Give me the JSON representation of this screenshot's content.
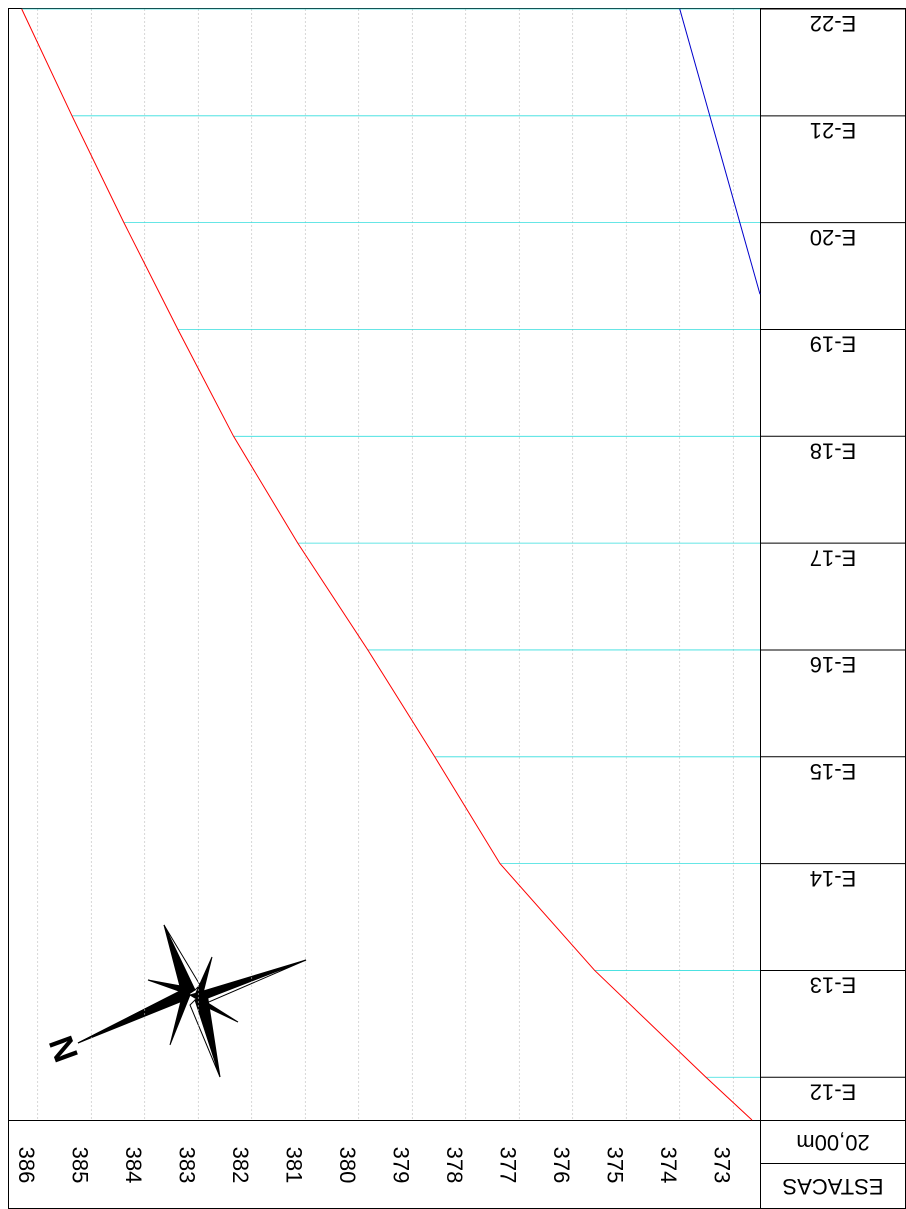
{
  "chart_data": {
    "type": "line",
    "xticks": [
      {
        "value": 12,
        "label": "E-12"
      },
      {
        "value": 13,
        "label": "E-13"
      },
      {
        "value": 14,
        "label": "E-14"
      },
      {
        "value": 15,
        "label": "E-15"
      },
      {
        "value": 16,
        "label": "E-16"
      },
      {
        "value": 17,
        "label": "E-17"
      },
      {
        "value": 18,
        "label": "E-18"
      },
      {
        "value": 19,
        "label": "E-19"
      },
      {
        "value": 20,
        "label": "E-20"
      },
      {
        "value": 21,
        "label": "E-21"
      },
      {
        "value": 22,
        "label": "E-22"
      }
    ],
    "xlim": [
      11.6,
      22
    ],
    "ylim": [
      372.5,
      386.5
    ],
    "yticks": [
      373,
      374,
      375,
      376,
      377,
      378,
      379,
      380,
      381,
      382,
      383,
      384,
      385,
      386
    ],
    "x_label": "ESTACAS",
    "scale_label": "20,00m",
    "north_label": "N",
    "series": [
      {
        "color": "#ff0000",
        "x": [
          11.6,
          12,
          13,
          14,
          15,
          16,
          17,
          18,
          19,
          20,
          21,
          22
        ],
        "values": [
          372.65,
          373.51,
          375.59,
          377.36,
          378.58,
          379.83,
          381.14,
          382.34,
          383.38,
          384.39,
          385.36,
          386.3
        ]
      },
      {
        "color": "#0000cc",
        "x": [
          19.33,
          22
        ],
        "values": [
          372.5,
          374.0
        ]
      }
    ],
    "grid": true
  }
}
